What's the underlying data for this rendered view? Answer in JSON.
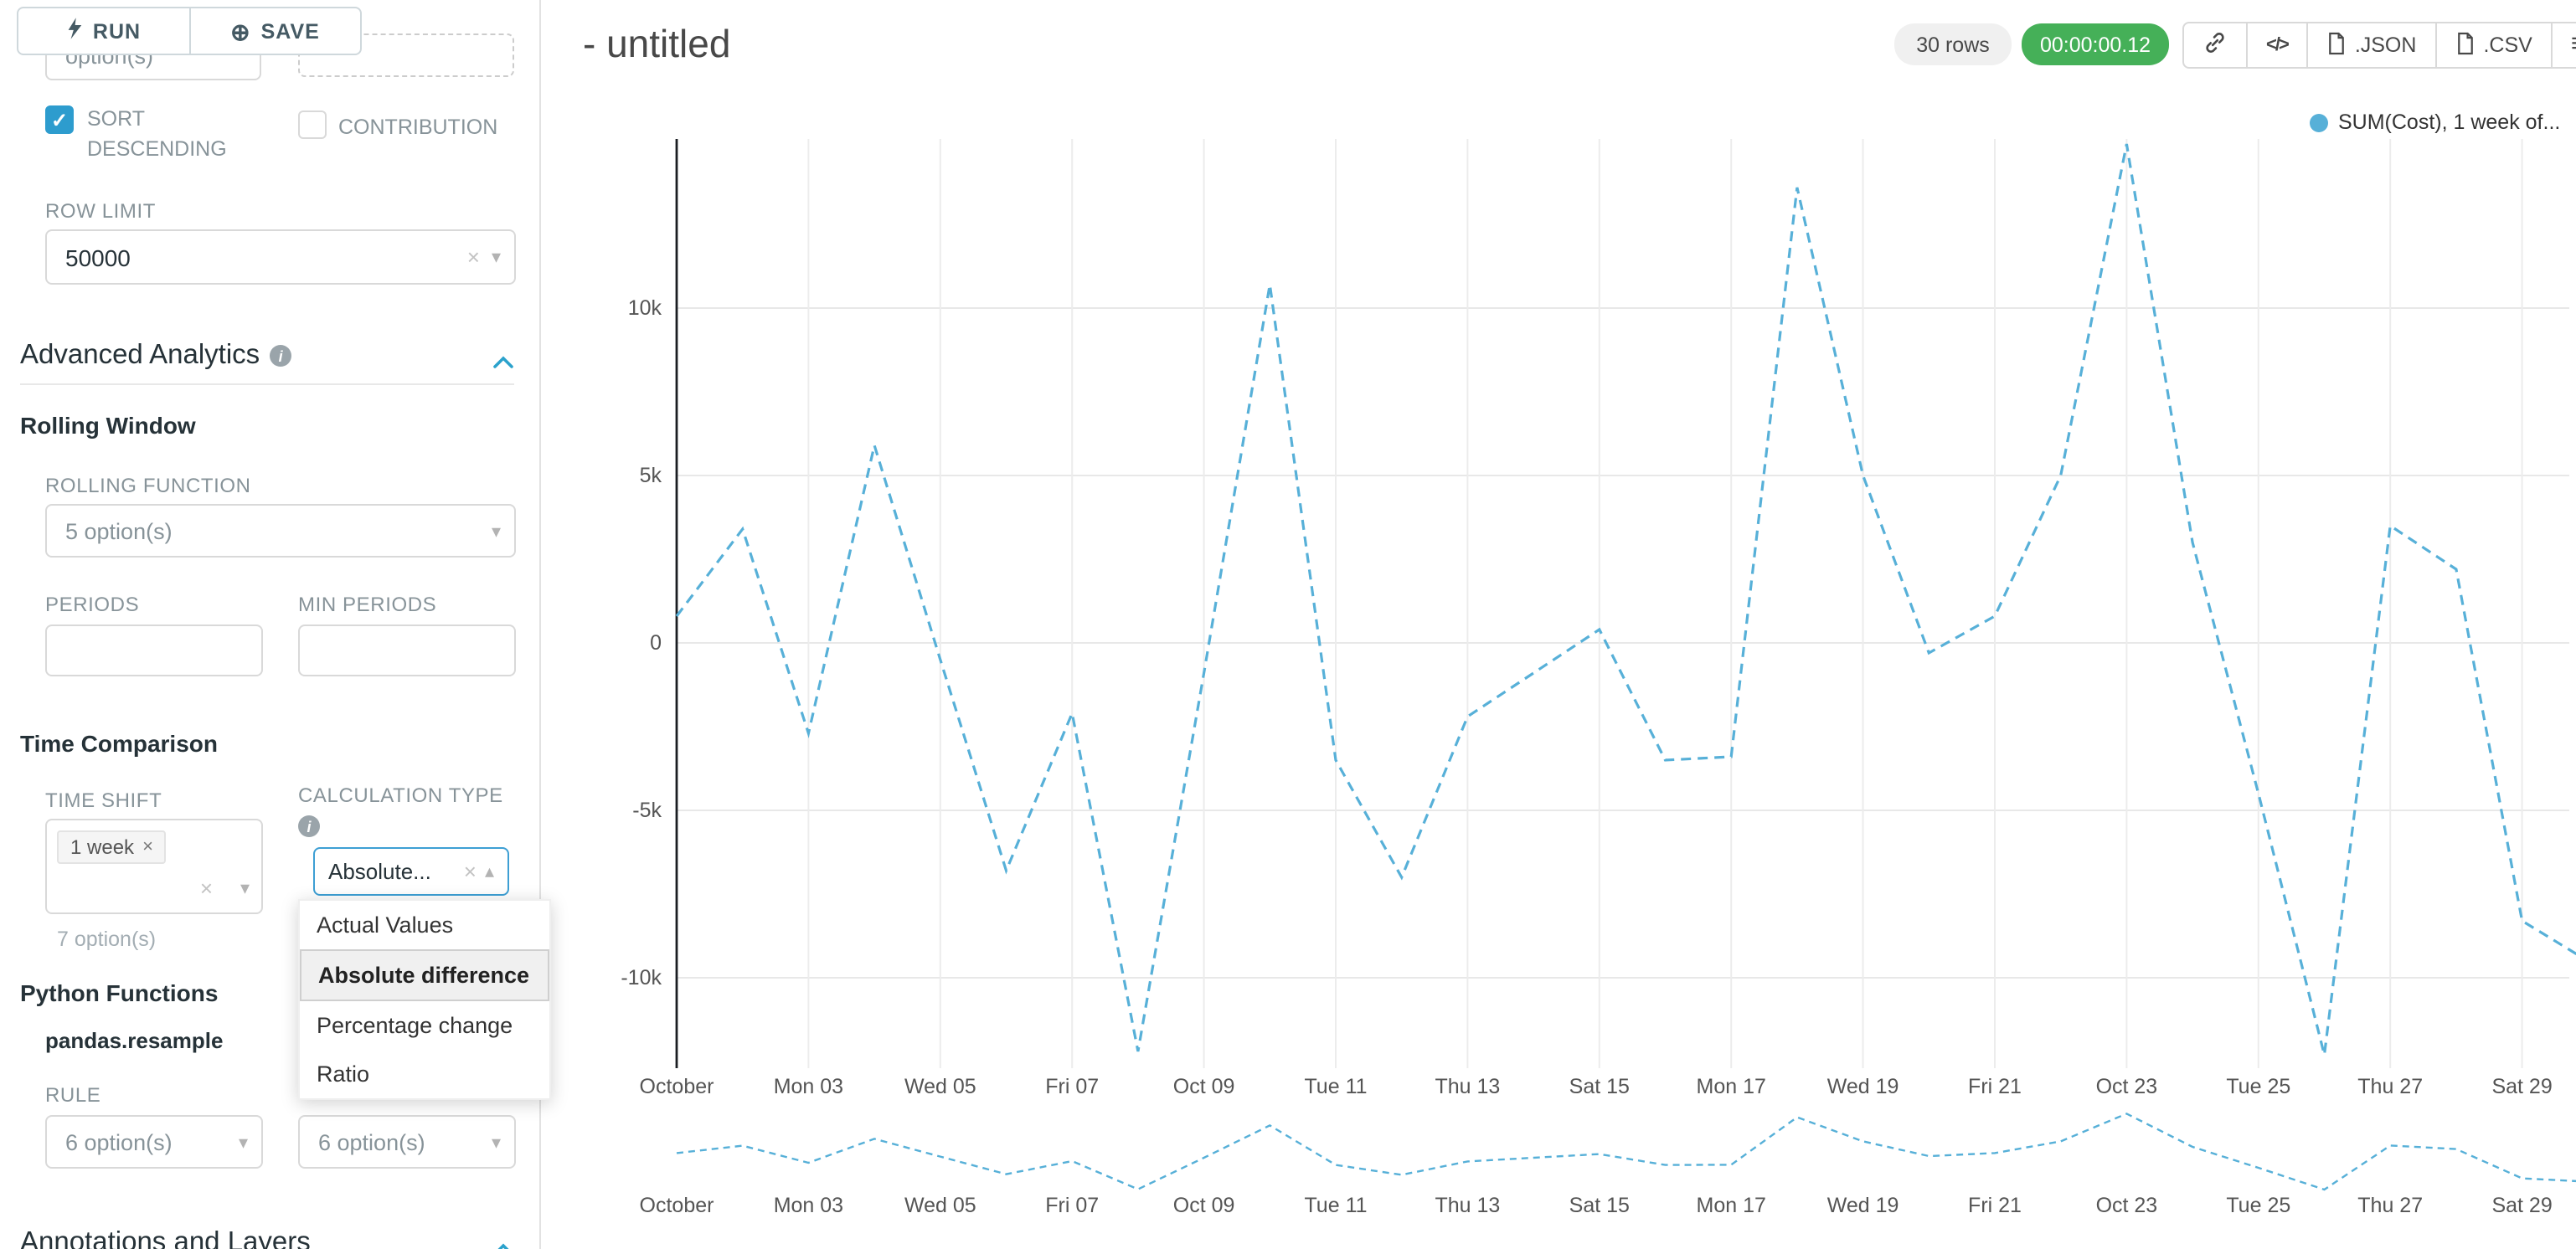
{
  "toolbar": {
    "run_label": "RUN",
    "save_label": "SAVE"
  },
  "icons": {
    "clear": "×",
    "caret_down": "▾",
    "caret_up": "▴",
    "hamburger": "≡",
    "save": "⊕",
    "code": "</>",
    "check": "✓",
    "info": "i"
  },
  "colors": {
    "accent_blue": "#2ba2cc",
    "checkbox_blue": "#2d9cce",
    "timer_green": "#45b058",
    "line_blue": "#57b0d8",
    "badge_gray": "#f0f0f0"
  },
  "left_panel": {
    "truncated_select_value": "option(s)",
    "sort_descending_label": "SORT DESCENDING",
    "contribution_label": "CONTRIBUTION",
    "row_limit_label": "ROW LIMIT",
    "row_limit_value": "50000",
    "advanced_analytics_title": "Advanced Analytics",
    "rolling_window": {
      "title": "Rolling Window",
      "rolling_function_label": "ROLLING FUNCTION",
      "rolling_function_value": "5 option(s)",
      "periods_label": "PERIODS",
      "min_periods_label": "MIN PERIODS"
    },
    "time_comparison": {
      "title": "Time Comparison",
      "time_shift_label": "TIME SHIFT",
      "time_shift_tag": "1 week",
      "time_shift_hint": "7 option(s)",
      "calculation_type_label": "CALCULATION TYPE",
      "calculation_type_value": "Absolute...",
      "dropdown_options": [
        "Actual Values",
        "Absolute difference",
        "Percentage change",
        "Ratio"
      ],
      "selected_option": "Absolute difference"
    },
    "python_functions": {
      "title": "Python Functions",
      "function_name": "pandas.resample",
      "rule_label": "RULE",
      "rule_value_left": "6 option(s)",
      "rule_value_right": "6 option(s)"
    },
    "annotations_title": "Annotations and Layers"
  },
  "header": {
    "title": "- untitled",
    "rows_badge": "30 rows",
    "timer": "00:00:00.12",
    "json_label": ".JSON",
    "csv_label": ".CSV"
  },
  "legend": {
    "label": "SUM(Cost), 1 week of..."
  },
  "chart_data": {
    "type": "line",
    "title": "",
    "legend_label": "SUM(Cost), 1 week of...",
    "line_color": "#57b0d8",
    "line_style": "dashed",
    "grid": true,
    "ylim": [
      -12500,
      15200
    ],
    "y_tick_labels": [
      "10k",
      "5k",
      "0",
      "-5k",
      "-10k"
    ],
    "y_tick_values": [
      10000,
      5000,
      0,
      -5000,
      -10000
    ],
    "x_tick_labels": [
      "October",
      "Mon 03",
      "Wed 05",
      "Fri 07",
      "Oct 09",
      "Tue 11",
      "Thu 13",
      "Sat 15",
      "Mon 17",
      "Wed 19",
      "Fri 21",
      "Oct 23",
      "Tue 25",
      "Thu 27",
      "Sat 29"
    ],
    "x_tick_days": [
      1,
      3,
      5,
      7,
      9,
      11,
      13,
      15,
      17,
      19,
      21,
      23,
      25,
      27,
      29
    ],
    "days": [
      1,
      2,
      3,
      4,
      5,
      6,
      7,
      8,
      9,
      10,
      11,
      12,
      13,
      14,
      15,
      16,
      17,
      18,
      19,
      20,
      21,
      22,
      23,
      24,
      25,
      26,
      27,
      28,
      29,
      30
    ],
    "values": [
      800,
      3400,
      -2700,
      5900,
      -500,
      -6800,
      -2100,
      -12200,
      -900,
      10700,
      -3500,
      -7000,
      -2200,
      -900,
      400,
      -3500,
      -3400,
      13600,
      5000,
      -300,
      800,
      5000,
      14900,
      3000,
      -4500,
      -12300,
      3500,
      2200,
      -8300,
      -9500
    ]
  }
}
